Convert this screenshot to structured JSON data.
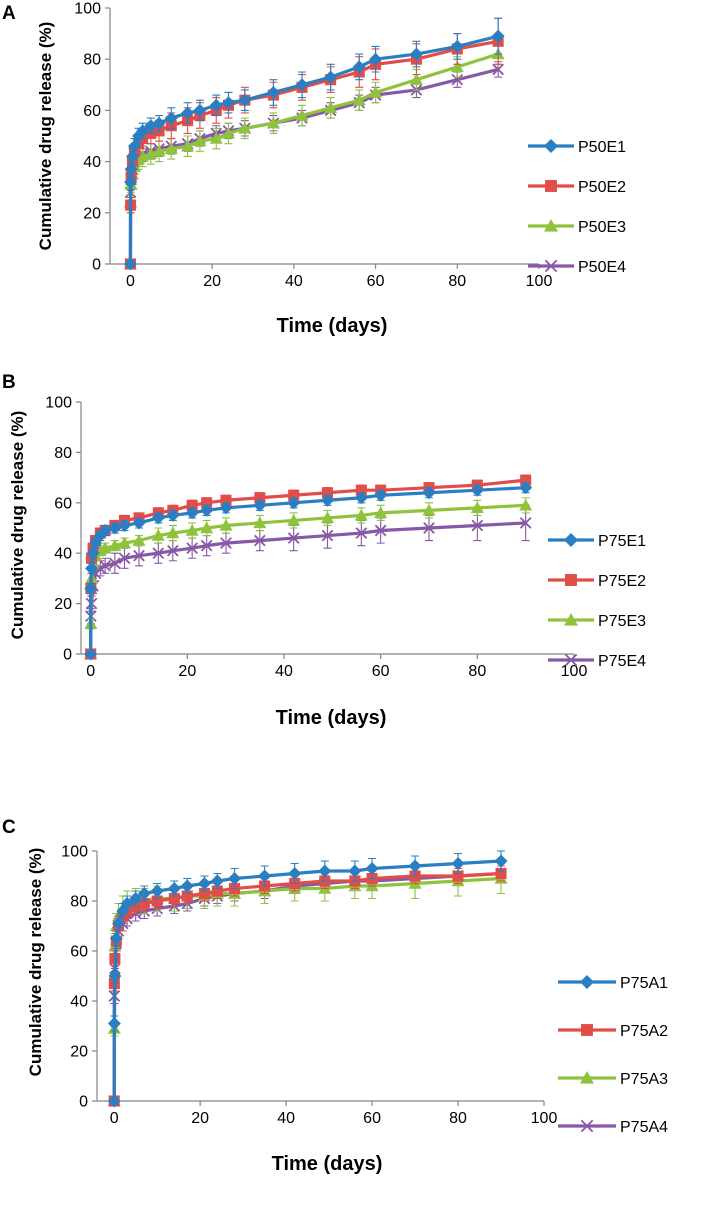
{
  "colors": {
    "series_1": "#2a7fc2",
    "series_2": "#e24d4a",
    "series_3": "#8fc33e",
    "series_4": "#8658a6",
    "axis": "#858585"
  },
  "chart_data": [
    {
      "panel": "A",
      "type": "line",
      "xlabel": "Time (days)",
      "ylabel": "Cumulative drug release (%)",
      "xlim": [
        -5,
        100
      ],
      "ylim": [
        0,
        100
      ],
      "xticks": [
        "0",
        "20",
        "40",
        "60",
        "80",
        "100"
      ],
      "yticks": [
        "0",
        "20",
        "40",
        "60",
        "80",
        "100"
      ],
      "x": [
        0,
        0.04,
        0.17,
        0.5,
        1,
        2,
        3,
        5,
        7,
        10,
        14,
        17,
        21,
        24,
        28,
        35,
        42,
        49,
        56,
        60,
        70,
        80,
        90
      ],
      "series": [
        {
          "name": "P50E1",
          "marker": "diamond",
          "values": [
            0,
            32,
            37,
            42,
            46,
            50,
            52,
            54,
            55,
            57,
            59,
            60,
            62,
            63,
            64,
            67,
            70,
            73,
            77,
            80,
            82,
            85,
            89
          ],
          "errors": [
            0,
            3,
            3,
            3,
            3,
            3,
            3,
            3,
            3,
            4,
            4,
            4,
            4,
            4,
            4,
            5,
            5,
            5,
            5,
            5,
            5,
            5,
            7
          ]
        },
        {
          "name": "P50E2",
          "marker": "square",
          "values": [
            0,
            23,
            34,
            40,
            44,
            47,
            49,
            51,
            52,
            54,
            56,
            58,
            60,
            62,
            64,
            66,
            69,
            72,
            75,
            78,
            80,
            84,
            87
          ],
          "errors": [
            0,
            3,
            3,
            3,
            3,
            4,
            4,
            4,
            4,
            5,
            5,
            5,
            5,
            5,
            5,
            5,
            5,
            5,
            6,
            6,
            6,
            6,
            9
          ]
        },
        {
          "name": "P50E3",
          "marker": "triangle",
          "values": [
            0,
            24,
            31,
            35,
            38,
            41,
            42,
            43,
            44,
            45,
            46,
            48,
            49,
            51,
            53,
            55,
            58,
            61,
            64,
            67,
            72,
            77,
            82
          ],
          "errors": [
            0,
            3,
            3,
            3,
            3,
            4,
            4,
            4,
            4,
            4,
            4,
            4,
            4,
            4,
            4,
            4,
            4,
            4,
            4,
            4,
            4,
            4,
            4
          ]
        },
        {
          "name": "P50E4",
          "marker": "cross",
          "values": [
            0,
            28,
            33,
            37,
            40,
            42,
            43,
            44,
            45,
            46,
            47,
            49,
            51,
            52,
            53,
            55,
            57,
            60,
            63,
            66,
            68,
            72,
            76
          ],
          "errors": [
            0,
            3,
            3,
            3,
            3,
            3,
            3,
            3,
            3,
            3,
            3,
            3,
            3,
            3,
            3,
            3,
            3,
            3,
            3,
            3,
            3,
            3,
            3
          ]
        }
      ]
    },
    {
      "panel": "B",
      "type": "line",
      "xlabel": "Time (days)",
      "ylabel": "Cumulative drug release (%)",
      "xlim": [
        -2,
        100
      ],
      "ylim": [
        0,
        100
      ],
      "xticks": [
        "0",
        "20",
        "40",
        "60",
        "80",
        "100"
      ],
      "yticks": [
        "0",
        "20",
        "40",
        "60",
        "80",
        "100"
      ],
      "x": [
        0,
        0.04,
        0.17,
        0.5,
        1,
        2,
        3,
        5,
        7,
        10,
        14,
        17,
        21,
        24,
        28,
        35,
        42,
        49,
        56,
        60,
        70,
        80,
        90
      ],
      "series": [
        {
          "name": "P75E1",
          "marker": "diamond",
          "values": [
            0,
            26,
            34,
            40,
            44,
            47,
            49,
            50,
            51,
            52,
            54,
            55,
            56,
            57,
            58,
            59,
            60,
            61,
            62,
            63,
            64,
            65,
            66
          ],
          "errors": [
            0,
            2,
            2,
            2,
            2,
            2,
            2,
            2,
            2,
            2,
            2,
            2,
            2,
            2,
            2,
            2,
            2,
            2,
            2,
            2,
            2,
            2,
            2
          ]
        },
        {
          "name": "P75E2",
          "marker": "square",
          "values": [
            0,
            26,
            38,
            42,
            45,
            48,
            49,
            51,
            53,
            54,
            56,
            57,
            59,
            60,
            61,
            62,
            63,
            64,
            65,
            65,
            66,
            67,
            69
          ],
          "errors": [
            0,
            2,
            2,
            2,
            2,
            2,
            2,
            2,
            2,
            2,
            2,
            2,
            2,
            2,
            2,
            2,
            2,
            2,
            2,
            2,
            2,
            2,
            2
          ]
        },
        {
          "name": "P75E3",
          "marker": "triangle",
          "values": [
            0,
            12,
            30,
            36,
            39,
            41,
            42,
            43,
            44,
            45,
            47,
            48,
            49,
            50,
            51,
            52,
            53,
            54,
            55,
            56,
            57,
            58,
            59
          ],
          "errors": [
            0,
            2,
            2,
            2,
            2,
            2,
            2,
            2,
            2,
            2,
            3,
            3,
            3,
            3,
            3,
            3,
            3,
            3,
            3,
            3,
            3,
            3,
            3
          ]
        },
        {
          "name": "P75E4",
          "marker": "cross",
          "values": [
            0,
            15,
            20,
            27,
            32,
            34,
            35,
            36,
            38,
            39,
            40,
            41,
            42,
            43,
            44,
            45,
            46,
            47,
            48,
            49,
            50,
            51,
            52
          ],
          "errors": [
            0,
            3,
            3,
            3,
            3,
            3,
            3,
            4,
            4,
            4,
            4,
            4,
            4,
            4,
            4,
            4,
            5,
            5,
            5,
            5,
            5,
            6,
            7
          ]
        }
      ]
    },
    {
      "panel": "C",
      "type": "line",
      "xlabel": "Time (days)",
      "ylabel": "Cumulative drug release (%)",
      "xlim": [
        -4,
        100
      ],
      "ylim": [
        0,
        100
      ],
      "xticks": [
        "0",
        "20",
        "40",
        "60",
        "80",
        "100"
      ],
      "yticks": [
        "0",
        "20",
        "40",
        "60",
        "80",
        "100"
      ],
      "x": [
        0,
        0.04,
        0.17,
        0.5,
        1,
        2,
        3,
        5,
        7,
        10,
        14,
        17,
        21,
        24,
        28,
        35,
        42,
        49,
        56,
        60,
        70,
        80,
        90
      ],
      "series": [
        {
          "name": "P75A1",
          "marker": "diamond",
          "values": [
            0,
            31,
            50,
            65,
            71,
            76,
            79,
            81,
            83,
            84,
            85,
            86,
            87,
            88,
            89,
            90,
            91,
            92,
            92,
            93,
            94,
            95,
            96
          ],
          "errors": [
            0,
            3,
            3,
            3,
            3,
            3,
            3,
            3,
            3,
            3,
            3,
            3,
            3,
            3,
            4,
            4,
            4,
            4,
            4,
            4,
            4,
            4,
            4
          ]
        },
        {
          "name": "P75A2",
          "marker": "square",
          "values": [
            0,
            47,
            57,
            64,
            70,
            74,
            76,
            78,
            79,
            80,
            81,
            82,
            83,
            84,
            85,
            86,
            87,
            88,
            88,
            89,
            90,
            90,
            91
          ],
          "errors": [
            0,
            3,
            3,
            3,
            3,
            3,
            3,
            3,
            3,
            3,
            3,
            3,
            3,
            3,
            3,
            3,
            3,
            3,
            3,
            3,
            3,
            3,
            3
          ]
        },
        {
          "name": "P75A3",
          "marker": "triangle",
          "values": [
            0,
            29,
            62,
            70,
            74,
            77,
            79,
            80,
            80,
            81,
            81,
            82,
            82,
            83,
            83,
            84,
            85,
            85,
            86,
            86,
            87,
            88,
            89
          ],
          "errors": [
            0,
            3,
            5,
            5,
            5,
            5,
            5,
            5,
            5,
            5,
            5,
            5,
            5,
            5,
            5,
            5,
            5,
            5,
            5,
            5,
            6,
            6,
            6
          ]
        },
        {
          "name": "P75A4",
          "marker": "cross",
          "values": [
            0,
            42,
            53,
            63,
            68,
            71,
            73,
            75,
            76,
            77,
            78,
            79,
            81,
            82,
            83,
            84,
            86,
            87,
            88,
            88,
            89,
            90,
            91
          ],
          "errors": [
            0,
            3,
            3,
            3,
            3,
            3,
            3,
            3,
            3,
            3,
            3,
            3,
            3,
            3,
            3,
            3,
            3,
            3,
            3,
            3,
            3,
            3,
            3
          ]
        }
      ]
    }
  ]
}
